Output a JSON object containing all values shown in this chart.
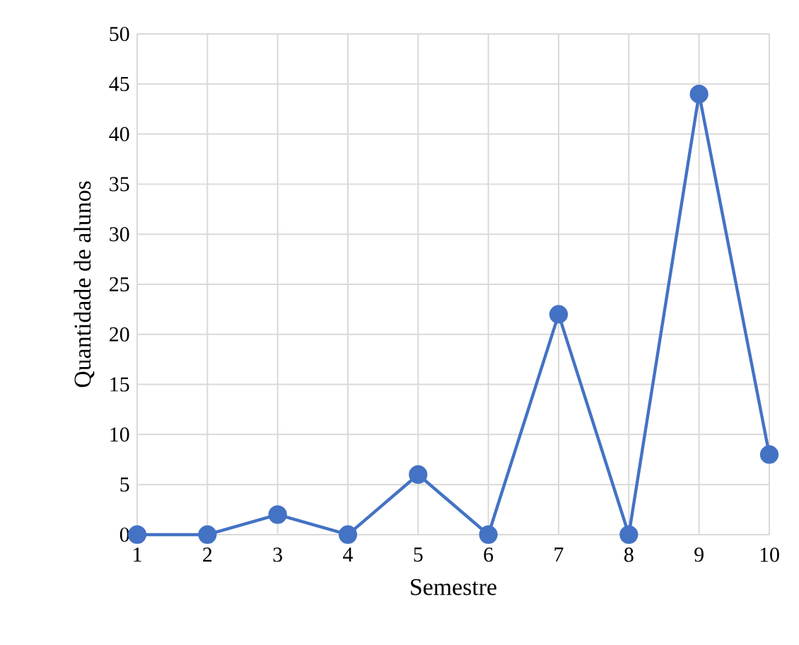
{
  "chart_data": {
    "type": "line",
    "xlabel": "Semestre",
    "ylabel": "Quantidade de alunos",
    "categories": [
      "1",
      "2",
      "3",
      "4",
      "5",
      "6",
      "7",
      "8",
      "9",
      "10"
    ],
    "series": [
      {
        "color": "#4472c4",
        "values": [
          0,
          0,
          2,
          0,
          6,
          0,
          22,
          0,
          44,
          8
        ]
      }
    ],
    "ylim": [
      0,
      50
    ],
    "yticks": [
      0,
      5,
      10,
      15,
      20,
      25,
      30,
      35,
      40,
      45,
      50
    ],
    "grid": true,
    "marker": "circle",
    "line_style": "solid"
  }
}
